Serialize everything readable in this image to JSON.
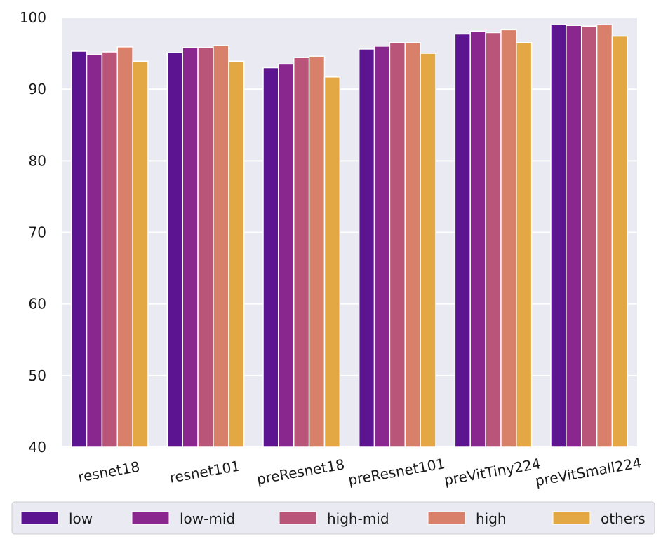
{
  "chart_data": {
    "type": "bar",
    "title": "",
    "xlabel": "",
    "ylabel": "",
    "ylim": [
      40,
      100
    ],
    "yticks": [
      40,
      50,
      60,
      70,
      80,
      90,
      100
    ],
    "grid": true,
    "legend_position": "bottom",
    "categories": [
      "resnet18",
      "resnet101",
      "preResnet18",
      "preResnet101",
      "preVitTiny224",
      "preVitSmall224"
    ],
    "series": [
      {
        "name": "low",
        "color": "#5c1490",
        "values": [
          95.3,
          95.1,
          93.0,
          95.6,
          97.7,
          99.0
        ]
      },
      {
        "name": "low-mid",
        "color": "#8a278f",
        "values": [
          94.8,
          95.8,
          93.5,
          96.0,
          98.1,
          98.9
        ]
      },
      {
        "name": "high-mid",
        "color": "#b95578",
        "values": [
          95.2,
          95.8,
          94.4,
          96.5,
          97.9,
          98.8
        ]
      },
      {
        "name": "high",
        "color": "#d9806a",
        "values": [
          95.9,
          96.1,
          94.6,
          96.5,
          98.3,
          99.0
        ]
      },
      {
        "name": "others",
        "color": "#e3a844",
        "values": [
          93.9,
          93.9,
          91.7,
          95.0,
          96.5,
          97.4
        ]
      }
    ]
  }
}
